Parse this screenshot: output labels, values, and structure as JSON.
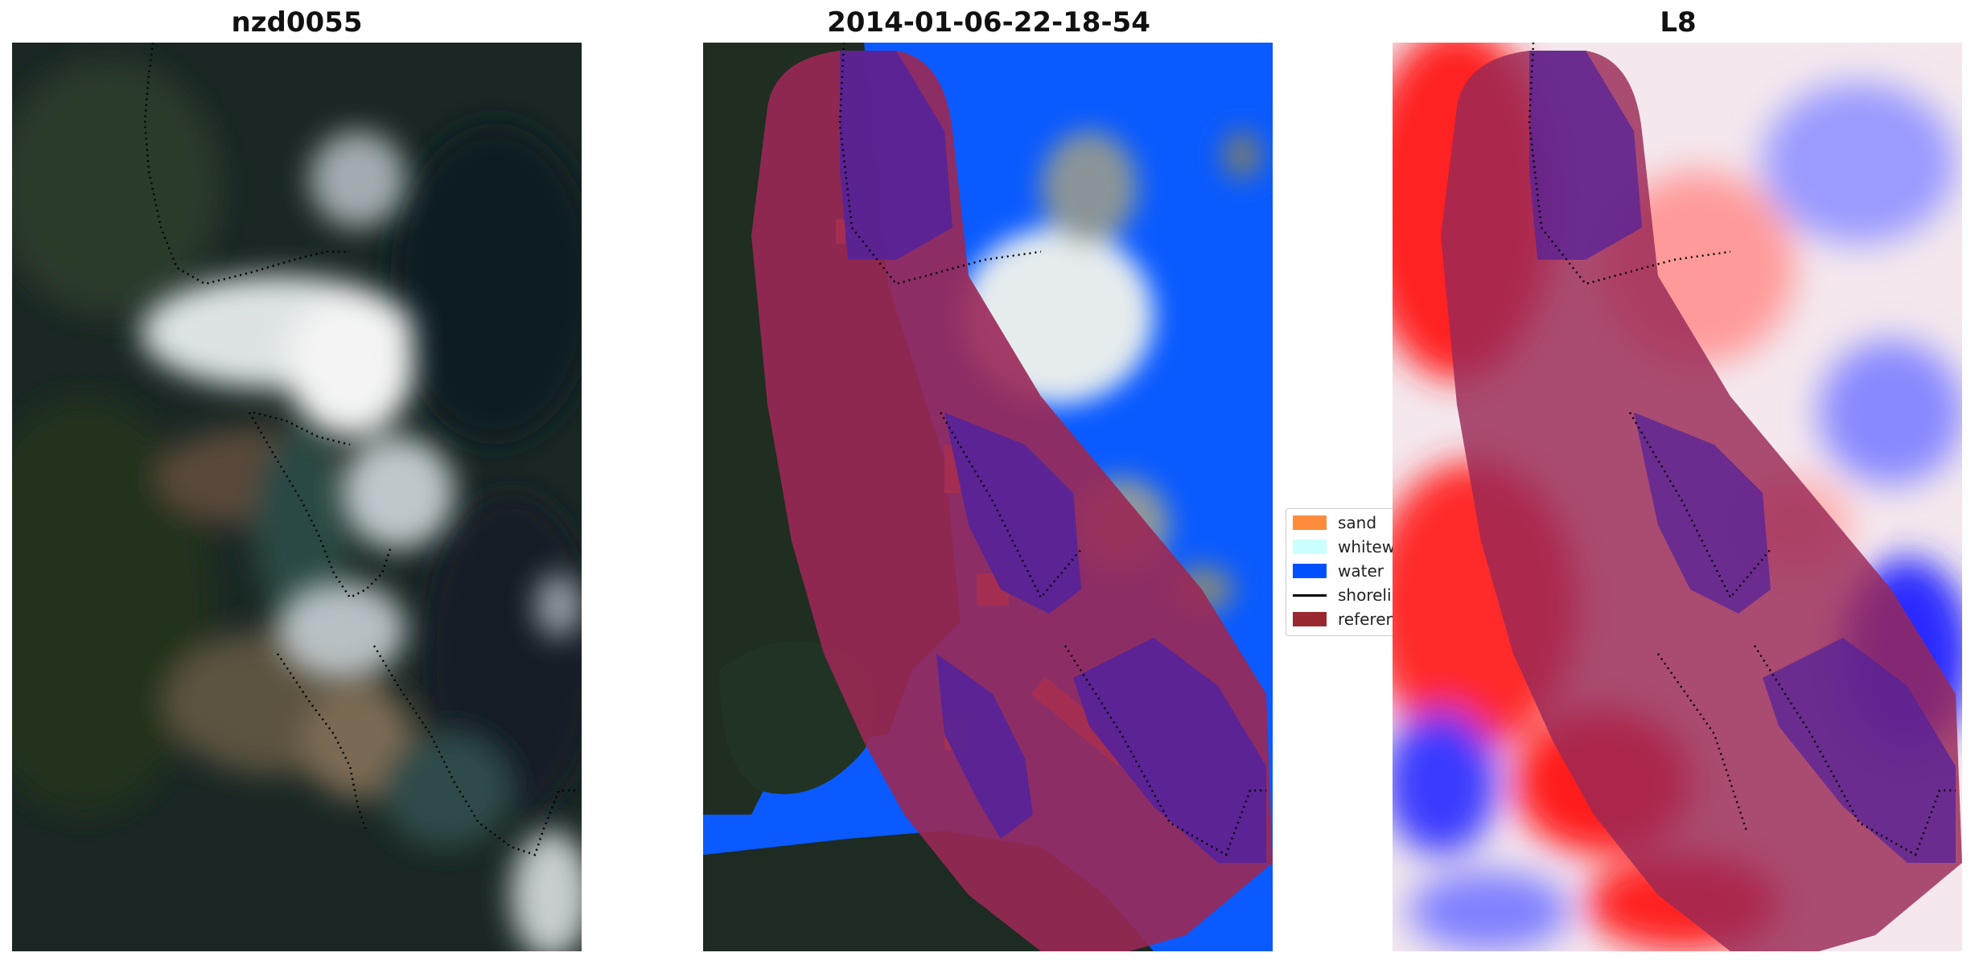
{
  "panels": [
    {
      "title": "nzd0055"
    },
    {
      "title": "2014-01-06-22-18-54"
    },
    {
      "title": "L8"
    }
  ],
  "legend": {
    "items": [
      {
        "label": "sand",
        "color": "#ff8c3c",
        "kind": "patch"
      },
      {
        "label": "whitewater",
        "color": "#ccffff",
        "kind": "patch"
      },
      {
        "label": "water",
        "color": "#0050ff",
        "kind": "patch"
      },
      {
        "label": "shoreline",
        "color": "#000000",
        "kind": "line"
      },
      {
        "label": "reference shoreline buffer",
        "color": "#9a2830",
        "kind": "patch"
      }
    ]
  },
  "colors": {
    "buffer": "#9a2855",
    "water_class": "#0a5aff",
    "sand_class": "#ff8a2a",
    "index_red": "#ff2020",
    "index_blue": "#3a3aff"
  }
}
